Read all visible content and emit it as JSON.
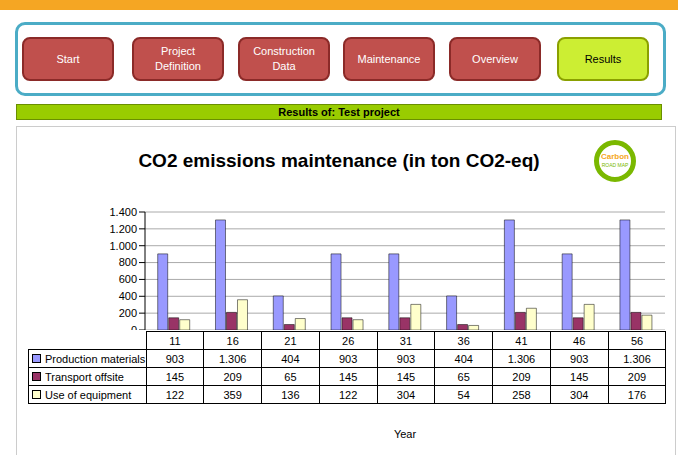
{
  "nav": {
    "buttons": [
      {
        "label": "Start"
      },
      {
        "label": "Project Definition"
      },
      {
        "label": "Construction Data"
      },
      {
        "label": "Maintenance"
      },
      {
        "label": "Overview"
      },
      {
        "label": "Results",
        "active": true
      }
    ]
  },
  "header": "Results of: Test project",
  "logo": [
    "Carbon",
    "ROAD MAP"
  ],
  "chart_data": {
    "type": "bar",
    "title": "CO2 emissions maintenance (in ton CO2-eq)",
    "x_label": "Year",
    "categories": [
      "11",
      "16",
      "21",
      "26",
      "31",
      "36",
      "41",
      "46",
      "56"
    ],
    "series": [
      {
        "name": "Production materials",
        "color": "#9999ff",
        "values": [
          903,
          1306,
          404,
          903,
          903,
          404,
          1306,
          903,
          1306
        ],
        "value_labels": [
          "903",
          "1.306",
          "404",
          "903",
          "903",
          "404",
          "1.306",
          "903",
          "1.306"
        ]
      },
      {
        "name": "Transport offsite",
        "color": "#993366",
        "values": [
          145,
          209,
          65,
          145,
          145,
          65,
          209,
          145,
          209
        ],
        "value_labels": [
          "145",
          "209",
          "65",
          "145",
          "145",
          "65",
          "209",
          "145",
          "209"
        ]
      },
      {
        "name": "Use of equipment",
        "color": "#ffffcc",
        "values": [
          122,
          359,
          136,
          122,
          304,
          54,
          258,
          304,
          176
        ],
        "value_labels": [
          "122",
          "359",
          "136",
          "122",
          "304",
          "54",
          "258",
          "304",
          "176"
        ]
      }
    ],
    "ylim": [
      0,
      1400
    ],
    "yticks": [
      0,
      200,
      400,
      600,
      800,
      {
        "value": 1000,
        "label": "1.000"
      },
      {
        "value": 1200,
        "label": "1.200"
      },
      {
        "value": 1400,
        "label": "1.400"
      }
    ],
    "grid": true
  }
}
